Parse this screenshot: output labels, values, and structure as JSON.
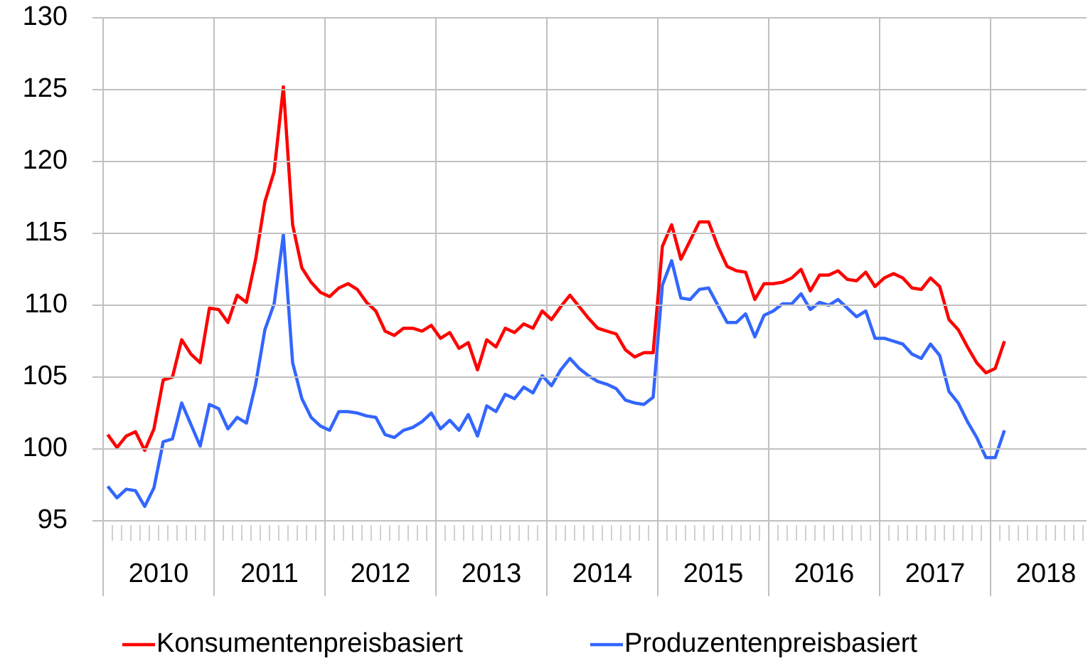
{
  "chart_data": {
    "type": "line",
    "categories": [
      null,
      null,
      null,
      null,
      null,
      null,
      "2010",
      null,
      null,
      null,
      null,
      null,
      null,
      null,
      null,
      null,
      null,
      null,
      "2011",
      null,
      null,
      null,
      null,
      null,
      null,
      null,
      null,
      null,
      null,
      null,
      "2012",
      null,
      null,
      null,
      null,
      null,
      null,
      null,
      null,
      null,
      null,
      null,
      "2013",
      null,
      null,
      null,
      null,
      null,
      null,
      null,
      null,
      null,
      null,
      null,
      "2014",
      null,
      null,
      null,
      null,
      null,
      null,
      null,
      null,
      null,
      null,
      null,
      "2015",
      null,
      null,
      null,
      null,
      null,
      null,
      null,
      null,
      null,
      null,
      null,
      "2016",
      null,
      null,
      null,
      null,
      null,
      null,
      null,
      null,
      null,
      null,
      null,
      "2017",
      null,
      null,
      null,
      null,
      null,
      null,
      null,
      null,
      null,
      null,
      null,
      "2018",
      null,
      null,
      null,
      null,
      null
    ],
    "series": [
      {
        "name": "Konsumentenpreisbasiert",
        "color": "#ff0000",
        "values": [
          101.0,
          100.1,
          100.9,
          101.2,
          99.9,
          101.4,
          104.8,
          105.0,
          107.6,
          106.6,
          106.0,
          109.8,
          109.7,
          108.8,
          110.7,
          110.2,
          113.2,
          117.2,
          119.3,
          125.2,
          115.6,
          112.6,
          111.6,
          110.9,
          110.6,
          111.2,
          111.5,
          111.1,
          110.2,
          109.6,
          108.2,
          107.9,
          108.4,
          108.4,
          108.2,
          108.6,
          107.7,
          108.1,
          107.0,
          107.4,
          105.5,
          107.6,
          107.1,
          108.4,
          108.1,
          108.7,
          108.4,
          109.6,
          109.0,
          109.9,
          110.7,
          109.9,
          109.1,
          108.4,
          108.2,
          108.0,
          106.9,
          106.4,
          106.7,
          106.7,
          114.1,
          115.6,
          113.2,
          114.5,
          115.8,
          115.8,
          114.1,
          112.7,
          112.4,
          112.3,
          110.4,
          111.5,
          111.5,
          111.6,
          111.9,
          112.5,
          111.0,
          112.1,
          112.1,
          112.4,
          111.8,
          111.7,
          112.3,
          111.3,
          111.9,
          112.2,
          111.9,
          111.2,
          111.1,
          111.9,
          111.3,
          109.0,
          108.3,
          107.1,
          106.0,
          105.3,
          105.6,
          107.5,
          null,
          null,
          null,
          null,
          null,
          null,
          null,
          null,
          null,
          null
        ]
      },
      {
        "name": "Produzentenpreisbasiert",
        "color": "#3366ff",
        "values": [
          97.4,
          96.6,
          97.2,
          97.1,
          96.0,
          97.3,
          100.5,
          100.7,
          103.2,
          101.7,
          100.2,
          103.1,
          102.8,
          101.4,
          102.2,
          101.8,
          104.5,
          108.3,
          110.1,
          114.9,
          106.0,
          103.5,
          102.2,
          101.6,
          101.3,
          102.6,
          102.6,
          102.5,
          102.3,
          102.2,
          101.0,
          100.8,
          101.3,
          101.5,
          101.9,
          102.5,
          101.4,
          102.0,
          101.3,
          102.4,
          100.9,
          103.0,
          102.6,
          103.8,
          103.5,
          104.3,
          103.9,
          105.1,
          104.4,
          105.5,
          106.3,
          105.6,
          105.1,
          104.7,
          104.5,
          104.2,
          103.4,
          103.2,
          103.1,
          103.6,
          111.4,
          113.1,
          110.5,
          110.4,
          111.1,
          111.2,
          110.0,
          108.8,
          108.8,
          109.4,
          107.8,
          109.3,
          109.6,
          110.1,
          110.1,
          110.8,
          109.7,
          110.2,
          110.0,
          110.4,
          109.8,
          109.2,
          109.6,
          107.7,
          107.7,
          107.5,
          107.3,
          106.6,
          106.3,
          107.3,
          106.5,
          104.0,
          103.2,
          101.9,
          100.8,
          99.4,
          99.4,
          101.3,
          null,
          null,
          null,
          null,
          null,
          null,
          null,
          null,
          null,
          null
        ]
      }
    ],
    "ylim": [
      95,
      130
    ],
    "yticks": [
      95,
      100,
      105,
      110,
      115,
      120,
      125,
      130
    ],
    "grid": true,
    "legend": "bottom"
  }
}
